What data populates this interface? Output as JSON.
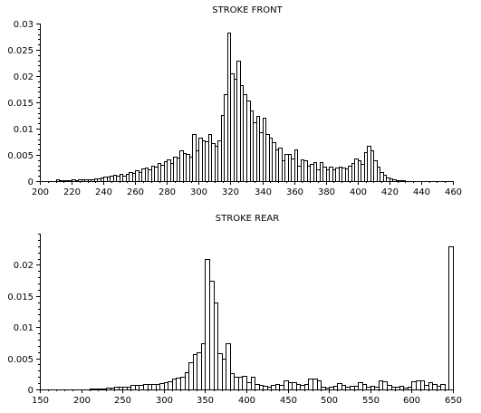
{
  "chart_data": [
    {
      "type": "bar",
      "title": "STROKE FRONT",
      "xlabel": "",
      "ylabel": "",
      "xlim": [
        200,
        460
      ],
      "ylim": [
        0,
        0.03
      ],
      "grid": false,
      "x_ticks": [
        "200",
        "220",
        "240",
        "260",
        "280",
        "300",
        "320",
        "340",
        "360",
        "380",
        "400",
        "420",
        "440",
        "460"
      ],
      "y_ticks": [
        "0",
        "0.005",
        "0.01",
        "0.015",
        "0.02",
        "0.025",
        "0.03"
      ],
      "bin_width": 2,
      "x": [
        210,
        212,
        214,
        216,
        218,
        220,
        222,
        224,
        226,
        228,
        230,
        232,
        234,
        236,
        238,
        240,
        242,
        244,
        246,
        248,
        250,
        252,
        254,
        256,
        258,
        260,
        262,
        264,
        266,
        268,
        270,
        272,
        274,
        276,
        278,
        280,
        282,
        284,
        286,
        288,
        290,
        292,
        294,
        296,
        298,
        300,
        302,
        304,
        306,
        308,
        310,
        312,
        314,
        316,
        318,
        320,
        322,
        324,
        326,
        328,
        330,
        332,
        334,
        336,
        338,
        340,
        342,
        344,
        346,
        348,
        350,
        352,
        354,
        356,
        358,
        360,
        362,
        364,
        366,
        368,
        370,
        372,
        374,
        376,
        378,
        380,
        382,
        384,
        386,
        388,
        390,
        392,
        394,
        396,
        398,
        400,
        402,
        404,
        406,
        408,
        410,
        412,
        414,
        416,
        418,
        420,
        422,
        424,
        426,
        428
      ],
      "values": [
        0.0003,
        0.0001,
        0.0001,
        0.0002,
        0.0002,
        0.0003,
        0.0002,
        0.0003,
        0.0004,
        0.0003,
        0.0004,
        0.0004,
        0.0006,
        0.0005,
        0.0007,
        0.0009,
        0.0008,
        0.001,
        0.0012,
        0.001,
        0.0013,
        0.0011,
        0.0014,
        0.0018,
        0.0016,
        0.0021,
        0.0017,
        0.0024,
        0.0026,
        0.0022,
        0.0029,
        0.0027,
        0.0034,
        0.0031,
        0.0038,
        0.0041,
        0.0035,
        0.0046,
        0.0044,
        0.0058,
        0.0054,
        0.0052,
        0.0046,
        0.009,
        0.0058,
        0.0082,
        0.0078,
        0.0076,
        0.009,
        0.0072,
        0.0068,
        0.0077,
        0.0126,
        0.0165,
        0.0282,
        0.0205,
        0.0195,
        0.0229,
        0.0183,
        0.0165,
        0.0153,
        0.0135,
        0.0112,
        0.0124,
        0.0093,
        0.0121,
        0.009,
        0.0082,
        0.0075,
        0.0061,
        0.0063,
        0.0039,
        0.0051,
        0.0052,
        0.0043,
        0.0061,
        0.0029,
        0.0042,
        0.0039,
        0.003,
        0.0032,
        0.0037,
        0.0023,
        0.0037,
        0.0027,
        0.0023,
        0.0028,
        0.0022,
        0.0026,
        0.0028,
        0.0026,
        0.0025,
        0.0029,
        0.0034,
        0.0043,
        0.0039,
        0.0033,
        0.0055,
        0.0068,
        0.0059,
        0.0039,
        0.0027,
        0.0018,
        0.0012,
        0.0007,
        0.0005,
        0.0003,
        0.0002,
        0.0001,
        0.0001
      ]
    },
    {
      "type": "bar",
      "title": "STROKE REAR",
      "xlabel": "",
      "ylabel": "",
      "xlim": [
        150,
        650
      ],
      "ylim": [
        0,
        0.025
      ],
      "grid": false,
      "x_ticks": [
        "150",
        "200",
        "250",
        "300",
        "350",
        "400",
        "450",
        "500",
        "550",
        "600",
        "650"
      ],
      "y_ticks": [
        "0",
        "0.005",
        "0.01",
        "0.015",
        "0.02"
      ],
      "bin_width": 5,
      "x": [
        150,
        155,
        160,
        165,
        170,
        175,
        180,
        185,
        190,
        195,
        200,
        205,
        210,
        215,
        220,
        225,
        230,
        235,
        240,
        245,
        250,
        255,
        260,
        265,
        270,
        275,
        280,
        285,
        290,
        295,
        300,
        305,
        310,
        315,
        320,
        325,
        330,
        335,
        340,
        345,
        350,
        355,
        360,
        365,
        370,
        375,
        380,
        385,
        390,
        395,
        400,
        405,
        410,
        415,
        420,
        425,
        430,
        435,
        440,
        445,
        450,
        455,
        460,
        465,
        470,
        475,
        480,
        485,
        490,
        495,
        500,
        505,
        510,
        515,
        520,
        525,
        530,
        535,
        540,
        545,
        550,
        555,
        560,
        565,
        570,
        575,
        580,
        585,
        590,
        595,
        600,
        605,
        610,
        615,
        620,
        625,
        630,
        635,
        640,
        645
      ],
      "values": [
        0,
        0,
        0,
        0,
        0,
        0,
        0,
        0,
        0,
        0,
        0,
        0,
        0.0002,
        0.0002,
        0.0001,
        0.0002,
        0.0003,
        0.0003,
        0.0004,
        0.0005,
        0.0005,
        0.0005,
        0.0007,
        0.0007,
        0.0007,
        0.0008,
        0.0008,
        0.0009,
        0.0009,
        0.001,
        0.0011,
        0.0013,
        0.0017,
        0.0019,
        0.0021,
        0.0028,
        0.0044,
        0.0056,
        0.006,
        0.0074,
        0.021,
        0.0174,
        0.0139,
        0.0058,
        0.0049,
        0.0074,
        0.0026,
        0.0021,
        0.0021,
        0.0022,
        0.0011,
        0.0021,
        0.0008,
        0.0007,
        0.0006,
        0.0005,
        0.0007,
        0.0009,
        0.0007,
        0.0015,
        0.0012,
        0.0011,
        0.0008,
        0.0007,
        0.0008,
        0.0017,
        0.0018,
        0.0015,
        0.0004,
        0.0003,
        0.0004,
        0.0006,
        0.001,
        0.0007,
        0.0005,
        0.0006,
        0.0006,
        0.0011,
        0.0009,
        0.0004,
        0.0006,
        0.0004,
        0.0015,
        0.0013,
        0.0007,
        0.0005,
        0.0005,
        0.0006,
        0.0003,
        0.0004,
        0.0013,
        0.0014,
        0.0014,
        0.0007,
        0.0012,
        0.0008,
        0.0006,
        0.0009,
        0.0,
        0.0229
      ]
    }
  ]
}
